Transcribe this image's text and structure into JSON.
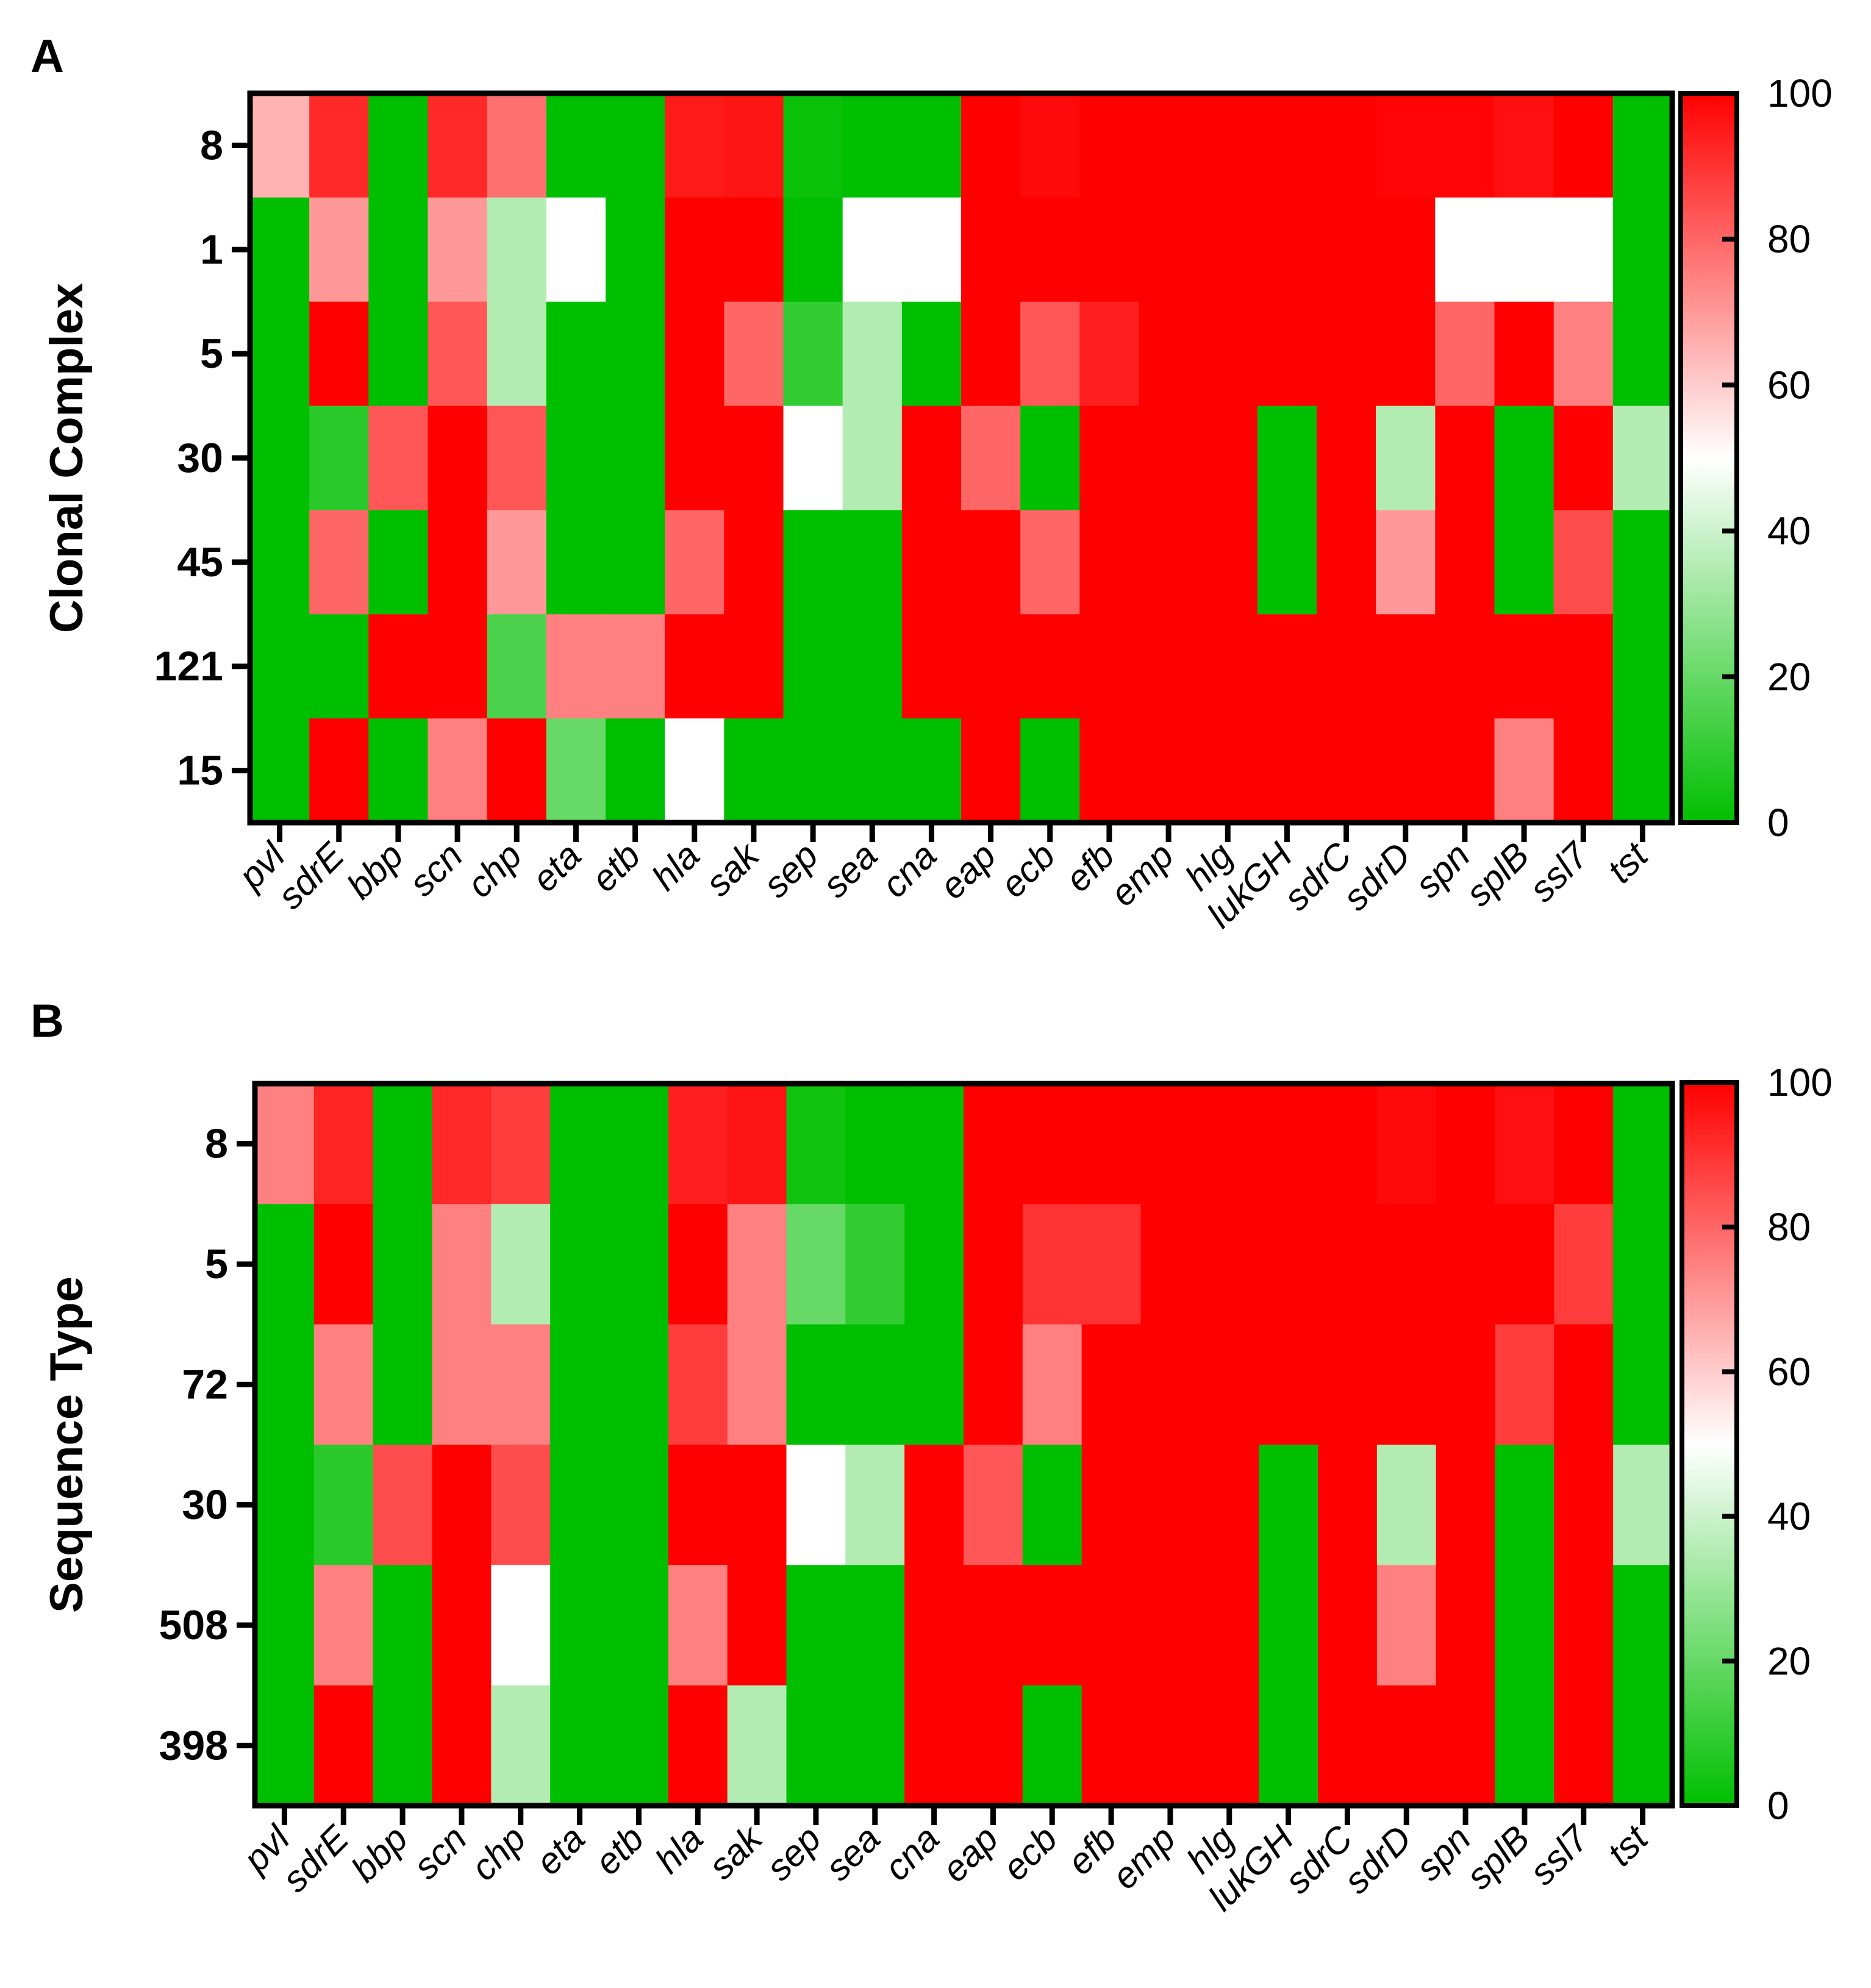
{
  "colors": {
    "low": "#00bf00",
    "mid": "#ffffff",
    "high": "#ff0000",
    "border": "#000000"
  },
  "chart_data": [
    {
      "type": "heatmap",
      "panel": "A",
      "ylabel": "Clonal Complex",
      "rows": [
        "8",
        "1",
        "5",
        "30",
        "45",
        "121",
        "15"
      ],
      "columns": [
        "pvl",
        "sdrE",
        "bbp",
        "scn",
        "chp",
        "eta",
        "etb",
        "hla",
        "sak",
        "sep",
        "sea",
        "cna",
        "eap",
        "ecb",
        "efb",
        "emp",
        "hlg",
        "lukGH",
        "sdrC",
        "sdrD",
        "spn",
        "splB",
        "ssl7",
        "tst"
      ],
      "values": [
        [
          65,
          92,
          0,
          92,
          78,
          0,
          0,
          95,
          96,
          2,
          0,
          0,
          100,
          98,
          100,
          100,
          100,
          100,
          100,
          99,
          99,
          97,
          100,
          0
        ],
        [
          0,
          70,
          0,
          70,
          35,
          50,
          0,
          100,
          100,
          0,
          50,
          50,
          100,
          100,
          100,
          100,
          100,
          100,
          100,
          100,
          50,
          50,
          50,
          0
        ],
        [
          0,
          100,
          0,
          83,
          35,
          0,
          0,
          100,
          80,
          10,
          35,
          0,
          100,
          83,
          94,
          100,
          100,
          100,
          100,
          100,
          80,
          100,
          75,
          0
        ],
        [
          0,
          8,
          83,
          100,
          83,
          0,
          0,
          100,
          100,
          50,
          35,
          100,
          80,
          0,
          100,
          100,
          100,
          0,
          100,
          35,
          100,
          0,
          100,
          35
        ],
        [
          0,
          80,
          0,
          100,
          70,
          0,
          0,
          80,
          100,
          0,
          0,
          100,
          100,
          80,
          100,
          100,
          100,
          0,
          100,
          70,
          100,
          0,
          85,
          0
        ],
        [
          0,
          0,
          100,
          100,
          15,
          75,
          75,
          100,
          100,
          0,
          0,
          100,
          100,
          100,
          100,
          100,
          100,
          100,
          100,
          100,
          100,
          100,
          100,
          0
        ],
        [
          0,
          100,
          0,
          75,
          100,
          20,
          0,
          50,
          0,
          0,
          0,
          0,
          100,
          0,
          100,
          100,
          100,
          100,
          100,
          100,
          100,
          75,
          100,
          0
        ]
      ],
      "colorbar": {
        "min": 0,
        "max": 100,
        "ticks": [
          0,
          20,
          40,
          60,
          80,
          100
        ]
      }
    },
    {
      "type": "heatmap",
      "panel": "B",
      "ylabel": "Sequence Type",
      "rows": [
        "8",
        "5",
        "72",
        "30",
        "508",
        "398"
      ],
      "columns": [
        "pvl",
        "sdrE",
        "bbp",
        "scn",
        "chp",
        "eta",
        "etb",
        "hla",
        "sak",
        "sep",
        "sea",
        "cna",
        "eap",
        "ecb",
        "efb",
        "emp",
        "hlg",
        "lukGH",
        "sdrC",
        "sdrD",
        "spn",
        "splB",
        "ssl7",
        "tst"
      ],
      "values": [
        [
          75,
          93,
          0,
          92,
          88,
          0,
          0,
          94,
          96,
          3,
          0,
          0,
          100,
          100,
          100,
          100,
          100,
          100,
          100,
          98,
          100,
          97,
          100,
          0
        ],
        [
          0,
          100,
          0,
          75,
          35,
          0,
          0,
          100,
          75,
          20,
          10,
          0,
          100,
          90,
          90,
          100,
          100,
          100,
          100,
          100,
          100,
          100,
          88,
          0
        ],
        [
          0,
          75,
          0,
          75,
          75,
          0,
          0,
          88,
          75,
          0,
          0,
          0,
          100,
          75,
          100,
          100,
          100,
          100,
          100,
          100,
          100,
          88,
          100,
          0
        ],
        [
          0,
          8,
          85,
          100,
          85,
          0,
          0,
          100,
          100,
          50,
          35,
          100,
          83,
          0,
          100,
          100,
          100,
          0,
          100,
          35,
          100,
          0,
          100,
          35
        ],
        [
          0,
          75,
          0,
          100,
          50,
          0,
          0,
          75,
          100,
          0,
          0,
          100,
          100,
          100,
          100,
          100,
          100,
          0,
          100,
          75,
          100,
          0,
          100,
          0
        ],
        [
          0,
          100,
          0,
          100,
          35,
          0,
          0,
          100,
          35,
          0,
          0,
          100,
          100,
          0,
          100,
          100,
          100,
          0,
          100,
          100,
          100,
          0,
          100,
          0
        ]
      ],
      "colorbar": {
        "min": 0,
        "max": 100,
        "ticks": [
          0,
          20,
          40,
          60,
          80,
          100
        ]
      }
    }
  ]
}
